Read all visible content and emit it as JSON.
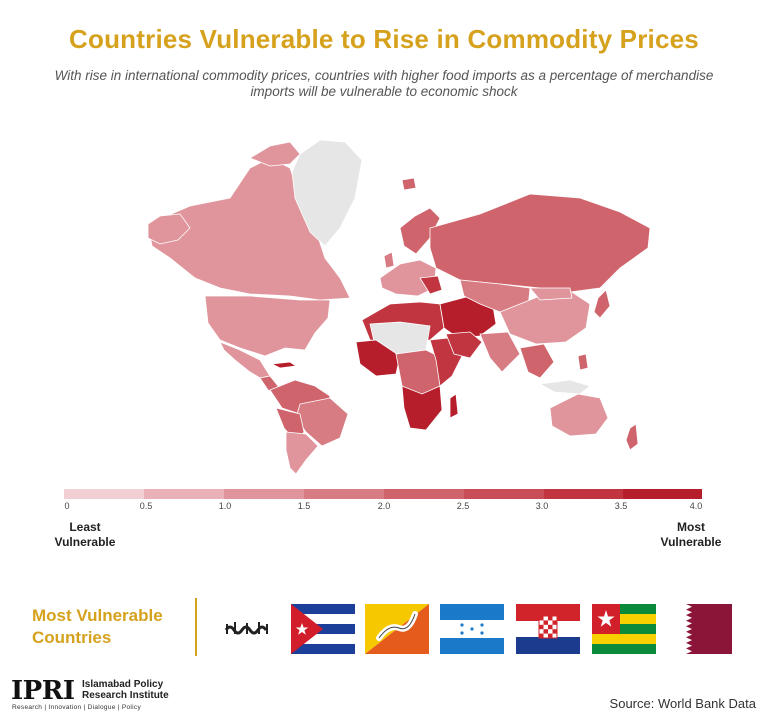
{
  "header": {
    "title": "Countries Vulnerable to Rise in Commodity Prices",
    "subtitle": "With rise in international commodity prices, countries with higher food imports as a percentage of merchandise imports will be vulnerable to economic shock"
  },
  "legend": {
    "ticks": [
      "0",
      "0.5",
      "1.0",
      "1.5",
      "2.0",
      "2.5",
      "3.0",
      "3.5",
      "4.0"
    ],
    "colors": [
      "#f1cfd2",
      "#e9b1b7",
      "#e0959c",
      "#d87c84",
      "#d0646c",
      "#c84d56",
      "#c03540",
      "#b51e2a"
    ],
    "least_label": "Least Vulnerable",
    "most_label": "Most Vulnerable"
  },
  "map_colors": {
    "no_data": "#e6e6e6",
    "low": "#e9b1b7",
    "mid_low": "#e0959c",
    "mid": "#d87c84",
    "mid_high": "#d0646c",
    "high": "#c03540",
    "highest": "#b51e2a"
  },
  "most_vulnerable": {
    "title": "Most Vulnerable Countries",
    "flags": [
      {
        "country": "Afghanistan",
        "icon": "emirate-shahada-flag"
      },
      {
        "country": "Cuba",
        "icon": "cuba-flag"
      },
      {
        "country": "Bhutan",
        "icon": "bhutan-flag"
      },
      {
        "country": "Honduras",
        "icon": "honduras-flag"
      },
      {
        "country": "Croatia",
        "icon": "croatia-flag"
      },
      {
        "country": "Togo",
        "icon": "togo-flag"
      },
      {
        "country": "Qatar",
        "icon": "qatar-flag"
      }
    ]
  },
  "footer": {
    "logo": "IPRI",
    "org_name": "Islamabad Policy Research Institute",
    "tagline": "Research | Innovation | Dialogue | Policy",
    "source": "Source: World Bank Data"
  }
}
